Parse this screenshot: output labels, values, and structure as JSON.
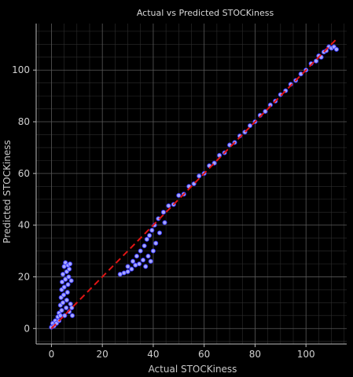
{
  "chart_data": {
    "type": "scatter",
    "title": "Actual vs Predicted STOCKiness",
    "xlabel": "Actual STOCKiness",
    "ylabel": "Predicted STOCKiness",
    "xlim": [
      -6,
      116
    ],
    "ylim": [
      -6,
      118
    ],
    "xticks": [
      0,
      20,
      40,
      60,
      80,
      100
    ],
    "yticks": [
      0,
      20,
      40,
      60,
      80,
      100
    ],
    "grid": true,
    "colors": {
      "background": "#000000",
      "points_fill": "#a8a8ff",
      "points_edge": "#3535ff",
      "reference_line": "#e01515"
    },
    "reference_line": {
      "style": "dashed",
      "from": [
        0,
        0
      ],
      "to": [
        112,
        112
      ]
    },
    "series": [
      {
        "points": [
          [
            0.0,
            0.5
          ],
          [
            0.5,
            2.0
          ],
          [
            1.0,
            1.0
          ],
          [
            1.5,
            3.0
          ],
          [
            2.0,
            2.0
          ],
          [
            2.5,
            4.5
          ],
          [
            3.0,
            3.0
          ],
          [
            3.0,
            6.0
          ],
          [
            3.5,
            5.0
          ],
          [
            3.5,
            9.0
          ],
          [
            3.8,
            12.0
          ],
          [
            4.0,
            7.0
          ],
          [
            4.0,
            15.0
          ],
          [
            4.2,
            18.0
          ],
          [
            4.5,
            10.0
          ],
          [
            4.5,
            21.0
          ],
          [
            4.8,
            13.0
          ],
          [
            5.0,
            24.0
          ],
          [
            5.0,
            16.0
          ],
          [
            5.2,
            5.0
          ],
          [
            5.5,
            19.0
          ],
          [
            5.5,
            25.5
          ],
          [
            5.8,
            8.0
          ],
          [
            6.0,
            22.0
          ],
          [
            6.0,
            11.0
          ],
          [
            6.3,
            14.0
          ],
          [
            6.5,
            17.0
          ],
          [
            6.5,
            24.5
          ],
          [
            6.8,
            20.0
          ],
          [
            7.0,
            23.0
          ],
          [
            7.0,
            6.5
          ],
          [
            7.3,
            25.0
          ],
          [
            7.5,
            9.5
          ],
          [
            7.8,
            18.5
          ],
          [
            8.0,
            8.0
          ],
          [
            8.2,
            5.0
          ],
          [
            27.0,
            21.0
          ],
          [
            28.5,
            21.5
          ],
          [
            30.0,
            22.0
          ],
          [
            30.0,
            24.0
          ],
          [
            31.5,
            23.0
          ],
          [
            32.0,
            26.0
          ],
          [
            33.0,
            24.5
          ],
          [
            33.5,
            28.0
          ],
          [
            34.5,
            25.0
          ],
          [
            35.0,
            30.0
          ],
          [
            36.0,
            26.5
          ],
          [
            36.5,
            32.0
          ],
          [
            37.0,
            24.0
          ],
          [
            37.5,
            34.5
          ],
          [
            38.0,
            28.0
          ],
          [
            38.5,
            36.0
          ],
          [
            39.0,
            26.0
          ],
          [
            39.5,
            38.0
          ],
          [
            40.0,
            30.0
          ],
          [
            40.5,
            40.0
          ],
          [
            41.0,
            33.0
          ],
          [
            42.0,
            42.5
          ],
          [
            42.5,
            37.0
          ],
          [
            44.0,
            45.0
          ],
          [
            44.5,
            41.0
          ],
          [
            46.0,
            47.5
          ],
          [
            48.0,
            48.0
          ],
          [
            50.0,
            51.5
          ],
          [
            52.0,
            52.0
          ],
          [
            54.0,
            55.0
          ],
          [
            56.0,
            56.0
          ],
          [
            58.0,
            59.0
          ],
          [
            60.0,
            60.0
          ],
          [
            62.0,
            63.0
          ],
          [
            64.0,
            64.0
          ],
          [
            66.0,
            67.0
          ],
          [
            68.0,
            68.0
          ],
          [
            70.0,
            71.0
          ],
          [
            72.0,
            72.0
          ],
          [
            74.0,
            74.5
          ],
          [
            76.0,
            76.0
          ],
          [
            78.0,
            78.5
          ],
          [
            80.0,
            80.0
          ],
          [
            82.0,
            82.5
          ],
          [
            84.0,
            84.0
          ],
          [
            86.0,
            86.5
          ],
          [
            88.0,
            88.0
          ],
          [
            90.0,
            90.5
          ],
          [
            92.0,
            92.0
          ],
          [
            94.0,
            94.5
          ],
          [
            96.0,
            96.0
          ],
          [
            98.0,
            98.5
          ],
          [
            100.0,
            100.0
          ],
          [
            102.0,
            102.5
          ],
          [
            104.0,
            103.5
          ],
          [
            105.0,
            105.5
          ],
          [
            106.0,
            105.0
          ],
          [
            107.0,
            107.0
          ],
          [
            108.0,
            107.5
          ],
          [
            109.0,
            109.0
          ],
          [
            110.0,
            108.5
          ],
          [
            111.0,
            109.0
          ],
          [
            112.0,
            108.0
          ]
        ]
      }
    ]
  }
}
